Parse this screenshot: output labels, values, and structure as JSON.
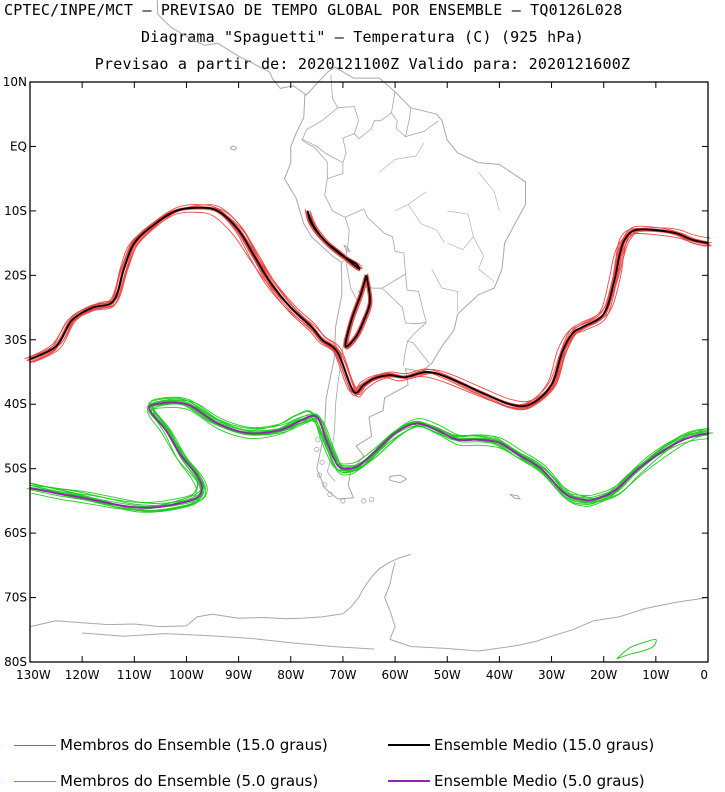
{
  "header": {
    "line1": "CPTEC/INPE/MCT – PREVISAO DE TEMPO GLOBAL POR ENSEMBLE – TQ0126L028",
    "line2": "Diagrama \"Spaguetti\" – Temperatura (C) (925 hPa)",
    "line3": "Previsao a partir de: 2020121100Z  Valido para: 2020121600Z"
  },
  "colors": {
    "member_15": "#f04545",
    "mean_15": "#000000",
    "member_5": "#22cc22",
    "mean_5": "#9a1fb8",
    "coast": "#a8a8a8"
  },
  "legend": {
    "members_15": "Membros do Ensemble (15.0 graus)",
    "mean_15": "Ensemble Medio (15.0 graus)",
    "members_5": "Membros do Ensemble (5.0 graus)",
    "mean_5": "Ensemble Medio (5.0 graus)"
  },
  "chart_data": {
    "type": "line",
    "title": "Diagrama \"Spaguetti\" – Temperatura (C) (925 hPa)",
    "xlabel": "",
    "ylabel": "",
    "xlim": [
      -130,
      0
    ],
    "ylim": [
      -80,
      10
    ],
    "x_ticks": [
      -130,
      -120,
      -110,
      -100,
      -90,
      -80,
      -70,
      -60,
      -50,
      -40,
      -30,
      -20,
      -10,
      0
    ],
    "x_tick_labels": [
      "130W",
      "120W",
      "110W",
      "100W",
      "90W",
      "80W",
      "70W",
      "60W",
      "50W",
      "40W",
      "30W",
      "20W",
      "10W",
      "0"
    ],
    "y_ticks": [
      10,
      0,
      -10,
      -20,
      -30,
      -40,
      -50,
      -60,
      -70,
      -80
    ],
    "y_tick_labels": [
      "10N",
      "EQ",
      "10S",
      "20S",
      "30S",
      "40S",
      "50S",
      "60S",
      "70S",
      "80S"
    ],
    "series": [
      {
        "name": "Ensemble Medio (15.0 graus)",
        "lon": [
          -130,
          -125,
          -122,
          -118,
          -114,
          -112,
          -110,
          -106,
          -102,
          -98,
          -94,
          -90,
          -87,
          -84,
          -80,
          -76,
          -74,
          -71,
          -68,
          -66,
          -64,
          -61,
          -58,
          -54,
          -50,
          -44,
          -38,
          -34,
          -30,
          -28,
          -26,
          -24,
          -20,
          -18,
          -17,
          -16,
          -14,
          -10,
          -6,
          -3,
          0
        ],
        "lat": [
          -33,
          -31,
          -27,
          -25,
          -24,
          -19,
          -15,
          -12,
          -10,
          -9.5,
          -10,
          -13,
          -17,
          -21,
          -25,
          -28,
          -30,
          -32,
          -38,
          -37,
          -36,
          -35.5,
          -35.8,
          -35,
          -35.8,
          -38,
          -40,
          -40,
          -37,
          -32,
          -29,
          -28,
          -26,
          -21,
          -17,
          -14.5,
          -13,
          -13,
          -13.5,
          -14.5,
          -15
        ]
      },
      {
        "name": "Ensemble Medio (5.0 graus)",
        "lon": [
          -130,
          -125,
          -120,
          -114,
          -110,
          -106,
          -102,
          -98,
          -97,
          -98,
          -101,
          -104,
          -107,
          -106,
          -100,
          -94,
          -88,
          -82,
          -78,
          -75,
          -73,
          -71,
          -69,
          -67,
          -64,
          -60,
          -56,
          -52,
          -48,
          -44,
          -40,
          -36,
          -32,
          -28,
          -26,
          -24,
          -22,
          -18,
          -14,
          -10,
          -6,
          -3,
          0
        ],
        "lat": [
          -53,
          -53.8,
          -54.5,
          -55.5,
          -56,
          -56,
          -55.5,
          -54.5,
          -53,
          -51,
          -48,
          -44,
          -41,
          -40,
          -40,
          -43,
          -44.5,
          -44,
          -42.5,
          -42,
          -46,
          -49.5,
          -50,
          -49.5,
          -47.5,
          -44.5,
          -43,
          -44,
          -45.5,
          -45.5,
          -46,
          -48,
          -50,
          -53.5,
          -54.5,
          -54.8,
          -54.8,
          -53.5,
          -50.5,
          -48,
          -46,
          -45,
          -44.5
        ]
      }
    ],
    "annotations": [
      "Andes contour: 15.0 graus (~10S–32S, 67W–77W)",
      "Antarctic coast contour: 5.0 graus (~75S–79S, 10W–18W)"
    ]
  }
}
